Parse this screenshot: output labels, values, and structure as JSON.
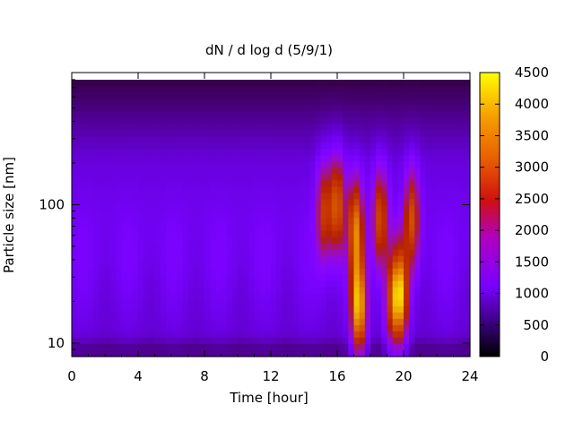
{
  "chart_data": {
    "type": "heatmap",
    "title": "dN / d log d (5/9/1)",
    "xlabel": "Time [hour]",
    "ylabel": "Particle size [nm]",
    "x_range": [
      0,
      24
    ],
    "x_ticks": [
      0,
      4,
      8,
      12,
      16,
      20,
      24
    ],
    "y_scale": "log",
    "y_range": [
      8,
      900
    ],
    "y_ticks": [
      10,
      100
    ],
    "colorbar": {
      "range": [
        0,
        4500
      ],
      "ticks": [
        0,
        500,
        1000,
        1500,
        2000,
        2500,
        3000,
        3500,
        4000,
        4500
      ],
      "colormap": "gnuplot-rgbformulae-7-5-15",
      "colors": [
        "#000000",
        "#3a0080",
        "#7a00ff",
        "#b000c0",
        "#d01010",
        "#e86000",
        "#f8a000",
        "#ffff00"
      ]
    },
    "background_level": 700,
    "hotspots": [
      {
        "t": 15.2,
        "d": 90,
        "peak": 2500
      },
      {
        "t": 16.0,
        "d": 100,
        "peak": 3000
      },
      {
        "t": 17.3,
        "d": 18,
        "peak": 4000
      },
      {
        "t": 17.1,
        "d": 70,
        "peak": 3200
      },
      {
        "t": 18.6,
        "d": 80,
        "peak": 2800
      },
      {
        "t": 19.3,
        "d": 20,
        "peak": 2400
      },
      {
        "t": 19.8,
        "d": 22,
        "peak": 3600
      },
      {
        "t": 20.5,
        "d": 80,
        "peak": 2800
      }
    ]
  }
}
